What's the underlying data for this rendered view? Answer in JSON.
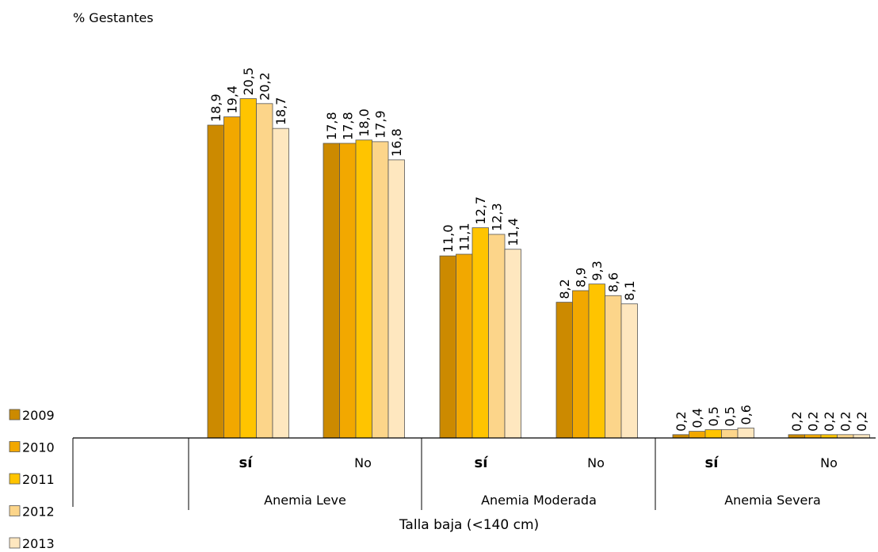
{
  "chart_data": {
    "type": "bar",
    "ylabel": "% Gestantes",
    "xlabel": "Talla baja (<140 cm)",
    "groups": [
      "Anemia Leve",
      "Anemia Moderada",
      "Anemia Severa"
    ],
    "categories": [
      "Sí",
      "No",
      "Sí",
      "No",
      "Sí",
      "No"
    ],
    "ylim": [
      0,
      21
    ],
    "legend_position": "left",
    "series": [
      {
        "name": "2009",
        "color": "#CC8A00",
        "values": [
          18.9,
          17.8,
          11.0,
          8.2,
          0.2,
          0.2
        ],
        "labels": [
          "18,9",
          "17,8",
          "11,0",
          "8,2",
          "0,2",
          "0,2"
        ]
      },
      {
        "name": "2010",
        "color": "#F2A800",
        "values": [
          19.4,
          17.8,
          11.1,
          8.9,
          0.4,
          0.2
        ],
        "labels": [
          "19,4",
          "17,8",
          "11,1",
          "8,9",
          "0,4",
          "0,2"
        ]
      },
      {
        "name": "2011",
        "color": "#FFC400",
        "values": [
          20.5,
          18.0,
          12.7,
          9.3,
          0.5,
          0.2
        ],
        "labels": [
          "20,5",
          "18,0",
          "12,7",
          "9,3",
          "0,5",
          "0,2"
        ]
      },
      {
        "name": "2012",
        "color": "#FCD58A",
        "values": [
          20.2,
          17.9,
          12.3,
          8.6,
          0.5,
          0.2
        ],
        "labels": [
          "20,2",
          "17,9",
          "12,3",
          "8,6",
          "0,5",
          "0,2"
        ]
      },
      {
        "name": "2013",
        "color": "#FEE7BF",
        "values": [
          18.7,
          16.8,
          11.4,
          8.1,
          0.6,
          0.2
        ],
        "labels": [
          "18,7",
          "16,8",
          "11,4",
          "8,1",
          "0,6",
          "0,2"
        ]
      }
    ]
  }
}
